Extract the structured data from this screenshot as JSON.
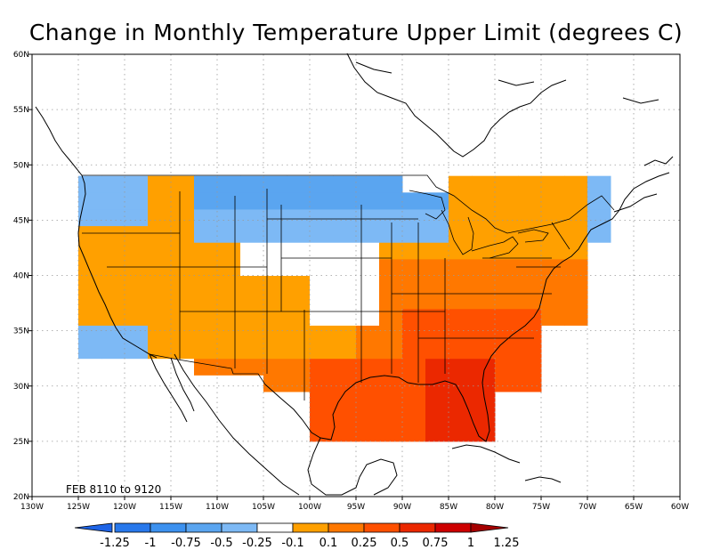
{
  "title": "Change in Monthly Temperature Upper Limit (degrees C)",
  "period_label": "FEB 8110 to 9120",
  "map": {
    "lon_range": [
      -130,
      -60
    ],
    "lat_range": [
      20,
      60
    ],
    "lon_ticks": [
      "130W",
      "125W",
      "120W",
      "115W",
      "110W",
      "105W",
      "100W",
      "95W",
      "90W",
      "85W",
      "80W",
      "75W",
      "70W",
      "65W",
      "60W"
    ],
    "lat_ticks": [
      "20N",
      "25N",
      "30N",
      "35N",
      "40N",
      "45N",
      "50N",
      "55N",
      "60N"
    ],
    "grid": "dotted"
  },
  "colorbar": {
    "labels": [
      "-1.25",
      "-1",
      "-0.75",
      "-0.5",
      "-0.25",
      "-0.1",
      "0.1",
      "0.25",
      "0.5",
      "0.75",
      "1",
      "1.25"
    ],
    "colors": [
      "#1e64e6",
      "#2878eb",
      "#3c91ef",
      "#5aa5f0",
      "#7db9f5",
      "#ffffff",
      "#ffa000",
      "#ff7800",
      "#ff5000",
      "#eb2800",
      "#cd0000",
      "#a50000"
    ]
  }
}
